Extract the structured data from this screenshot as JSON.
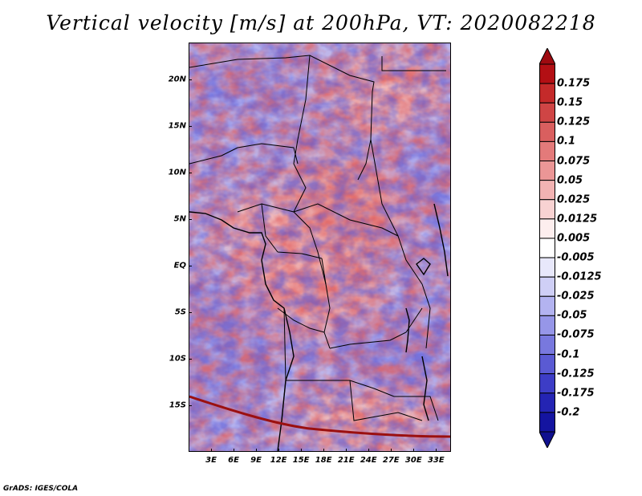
{
  "title": "Vertical velocity [m/s] at 200hPa, VT: 2020082218",
  "credit": "GrADS: IGES/COLA",
  "map": {
    "region": "Central Africa",
    "lon_range": [
      0,
      35
    ],
    "lat_range": [
      -20,
      24
    ],
    "lat_labels": [
      "20N",
      "15N",
      "10N",
      "5N",
      "EQ",
      "5S",
      "10S",
      "15S"
    ],
    "lat_values": [
      20,
      15,
      10,
      5,
      0,
      -5,
      -10,
      -15
    ],
    "lon_labels": [
      "3E",
      "6E",
      "9E",
      "12E",
      "15E",
      "18E",
      "21E",
      "24E",
      "27E",
      "30E",
      "33E"
    ],
    "lon_values": [
      3,
      6,
      9,
      12,
      15,
      18,
      21,
      24,
      27,
      30,
      33
    ]
  },
  "colorbar": {
    "labels": [
      "0.175",
      "0.15",
      "0.125",
      "0.1",
      "0.075",
      "0.05",
      "0.025",
      "0.0125",
      "0.005",
      "-0.005",
      "-0.0125",
      "-0.025",
      "-0.05",
      "-0.075",
      "-0.1",
      "-0.125",
      "-0.175",
      "-0.2"
    ],
    "colors": [
      "#b30f14",
      "#c42a2a",
      "#cf4545",
      "#d95f5f",
      "#e37a7a",
      "#eb9696",
      "#f2b3b3",
      "#f8d2d2",
      "#fdeeee",
      "#ffffff",
      "#e8e8fb",
      "#cfcff6",
      "#b3b3f0",
      "#9696e8",
      "#7878de",
      "#5a5ad3",
      "#3d3dc6",
      "#2424b3",
      "#1414a0"
    ],
    "top_color": "#9e0a10",
    "bottom_color": "#10108f"
  }
}
